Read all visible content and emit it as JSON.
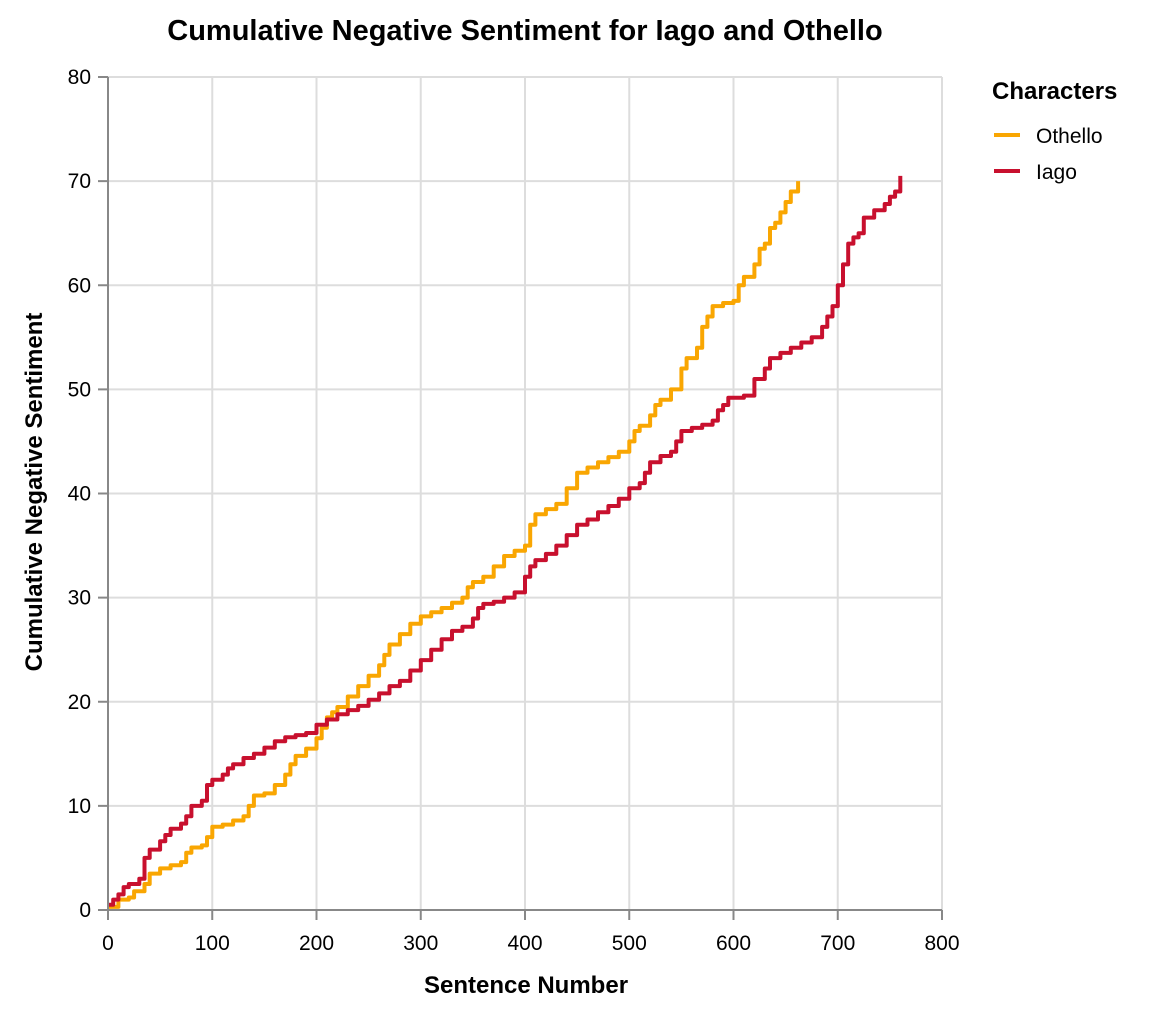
{
  "chart_data": {
    "type": "line",
    "title": "Cumulative Negative Sentiment for Iago and Othello",
    "xlabel": "Sentence Number",
    "ylabel": "Cumulative Negative Sentiment",
    "xlim": [
      0,
      800
    ],
    "ylim": [
      0,
      80
    ],
    "xticks": [
      0,
      100,
      200,
      300,
      400,
      500,
      600,
      700,
      800
    ],
    "yticks": [
      0,
      10,
      20,
      30,
      40,
      50,
      60,
      70,
      80
    ],
    "grid": true,
    "legend": {
      "title": "Characters",
      "position": "right"
    },
    "series": [
      {
        "name": "Othello",
        "color": "#F9A602",
        "points": [
          [
            0,
            0.3
          ],
          [
            10,
            1.0
          ],
          [
            20,
            1.2
          ],
          [
            25,
            1.8
          ],
          [
            35,
            2.5
          ],
          [
            40,
            3.5
          ],
          [
            50,
            4.0
          ],
          [
            60,
            4.3
          ],
          [
            70,
            4.6
          ],
          [
            75,
            5.5
          ],
          [
            80,
            6.0
          ],
          [
            90,
            6.2
          ],
          [
            95,
            7.0
          ],
          [
            100,
            8.0
          ],
          [
            110,
            8.2
          ],
          [
            120,
            8.6
          ],
          [
            130,
            9.0
          ],
          [
            135,
            10.0
          ],
          [
            140,
            11.0
          ],
          [
            150,
            11.2
          ],
          [
            160,
            12.0
          ],
          [
            170,
            13.0
          ],
          [
            175,
            14.0
          ],
          [
            180,
            14.8
          ],
          [
            190,
            15.5
          ],
          [
            200,
            16.5
          ],
          [
            205,
            17.5
          ],
          [
            210,
            18.5
          ],
          [
            215,
            19.0
          ],
          [
            220,
            19.5
          ],
          [
            230,
            20.5
          ],
          [
            240,
            21.5
          ],
          [
            250,
            22.5
          ],
          [
            260,
            23.5
          ],
          [
            265,
            24.5
          ],
          [
            270,
            25.5
          ],
          [
            280,
            26.5
          ],
          [
            290,
            27.5
          ],
          [
            300,
            28.2
          ],
          [
            310,
            28.6
          ],
          [
            320,
            29.0
          ],
          [
            330,
            29.5
          ],
          [
            340,
            30.0
          ],
          [
            345,
            31.0
          ],
          [
            350,
            31.5
          ],
          [
            360,
            32.0
          ],
          [
            370,
            33.0
          ],
          [
            380,
            34.0
          ],
          [
            390,
            34.5
          ],
          [
            400,
            35.0
          ],
          [
            405,
            37.0
          ],
          [
            410,
            38.0
          ],
          [
            420,
            38.5
          ],
          [
            430,
            39.0
          ],
          [
            440,
            40.5
          ],
          [
            450,
            42.0
          ],
          [
            460,
            42.5
          ],
          [
            470,
            43.0
          ],
          [
            480,
            43.5
          ],
          [
            490,
            44.0
          ],
          [
            500,
            45.0
          ],
          [
            505,
            46.0
          ],
          [
            510,
            46.5
          ],
          [
            520,
            47.5
          ],
          [
            525,
            48.5
          ],
          [
            530,
            49.0
          ],
          [
            540,
            50.0
          ],
          [
            550,
            52.0
          ],
          [
            555,
            53.0
          ],
          [
            565,
            54.0
          ],
          [
            570,
            56.0
          ],
          [
            575,
            57.0
          ],
          [
            580,
            58.0
          ],
          [
            590,
            58.3
          ],
          [
            600,
            58.5
          ],
          [
            605,
            60.0
          ],
          [
            610,
            60.8
          ],
          [
            620,
            62.0
          ],
          [
            625,
            63.5
          ],
          [
            630,
            64.0
          ],
          [
            635,
            65.5
          ],
          [
            640,
            66.0
          ],
          [
            645,
            67.0
          ],
          [
            650,
            68.0
          ],
          [
            655,
            69.0
          ],
          [
            662,
            70.0
          ]
        ]
      },
      {
        "name": "Iago",
        "color": "#C8102E",
        "points": [
          [
            0,
            0.5
          ],
          [
            5,
            1.0
          ],
          [
            10,
            1.5
          ],
          [
            15,
            2.2
          ],
          [
            20,
            2.5
          ],
          [
            30,
            3.0
          ],
          [
            35,
            5.0
          ],
          [
            40,
            5.8
          ],
          [
            50,
            6.6
          ],
          [
            55,
            7.2
          ],
          [
            60,
            7.8
          ],
          [
            70,
            8.3
          ],
          [
            75,
            9.0
          ],
          [
            80,
            10.0
          ],
          [
            90,
            10.5
          ],
          [
            95,
            12.0
          ],
          [
            100,
            12.5
          ],
          [
            110,
            13.0
          ],
          [
            115,
            13.6
          ],
          [
            120,
            14.0
          ],
          [
            130,
            14.6
          ],
          [
            140,
            15.0
          ],
          [
            150,
            15.6
          ],
          [
            160,
            16.2
          ],
          [
            170,
            16.6
          ],
          [
            180,
            16.8
          ],
          [
            190,
            17.0
          ],
          [
            200,
            17.8
          ],
          [
            210,
            18.3
          ],
          [
            220,
            18.8
          ],
          [
            230,
            19.2
          ],
          [
            240,
            19.6
          ],
          [
            250,
            20.2
          ],
          [
            260,
            20.8
          ],
          [
            270,
            21.5
          ],
          [
            280,
            22.0
          ],
          [
            290,
            23.0
          ],
          [
            300,
            24.0
          ],
          [
            310,
            25.0
          ],
          [
            320,
            26.0
          ],
          [
            330,
            26.8
          ],
          [
            340,
            27.2
          ],
          [
            350,
            28.0
          ],
          [
            355,
            29.0
          ],
          [
            360,
            29.4
          ],
          [
            370,
            29.6
          ],
          [
            380,
            30.0
          ],
          [
            390,
            30.5
          ],
          [
            400,
            32.0
          ],
          [
            405,
            33.0
          ],
          [
            410,
            33.6
          ],
          [
            420,
            34.2
          ],
          [
            430,
            35.0
          ],
          [
            440,
            36.0
          ],
          [
            450,
            37.0
          ],
          [
            460,
            37.5
          ],
          [
            470,
            38.2
          ],
          [
            480,
            38.8
          ],
          [
            490,
            39.5
          ],
          [
            500,
            40.5
          ],
          [
            510,
            41.0
          ],
          [
            515,
            42.0
          ],
          [
            520,
            43.0
          ],
          [
            530,
            43.6
          ],
          [
            540,
            44.0
          ],
          [
            545,
            45.0
          ],
          [
            550,
            46.0
          ],
          [
            560,
            46.3
          ],
          [
            570,
            46.6
          ],
          [
            580,
            47.0
          ],
          [
            585,
            48.0
          ],
          [
            590,
            48.5
          ],
          [
            595,
            49.2
          ],
          [
            610,
            49.4
          ],
          [
            620,
            51.0
          ],
          [
            630,
            52.0
          ],
          [
            635,
            53.0
          ],
          [
            645,
            53.5
          ],
          [
            655,
            54.0
          ],
          [
            665,
            54.5
          ],
          [
            675,
            55.0
          ],
          [
            685,
            56.0
          ],
          [
            690,
            57.0
          ],
          [
            695,
            58.0
          ],
          [
            700,
            60.0
          ],
          [
            705,
            62.0
          ],
          [
            710,
            64.0
          ],
          [
            715,
            64.6
          ],
          [
            720,
            65.0
          ],
          [
            725,
            66.5
          ],
          [
            735,
            67.2
          ],
          [
            745,
            67.8
          ],
          [
            750,
            68.5
          ],
          [
            755,
            69.0
          ],
          [
            760,
            70.5
          ]
        ]
      }
    ]
  }
}
